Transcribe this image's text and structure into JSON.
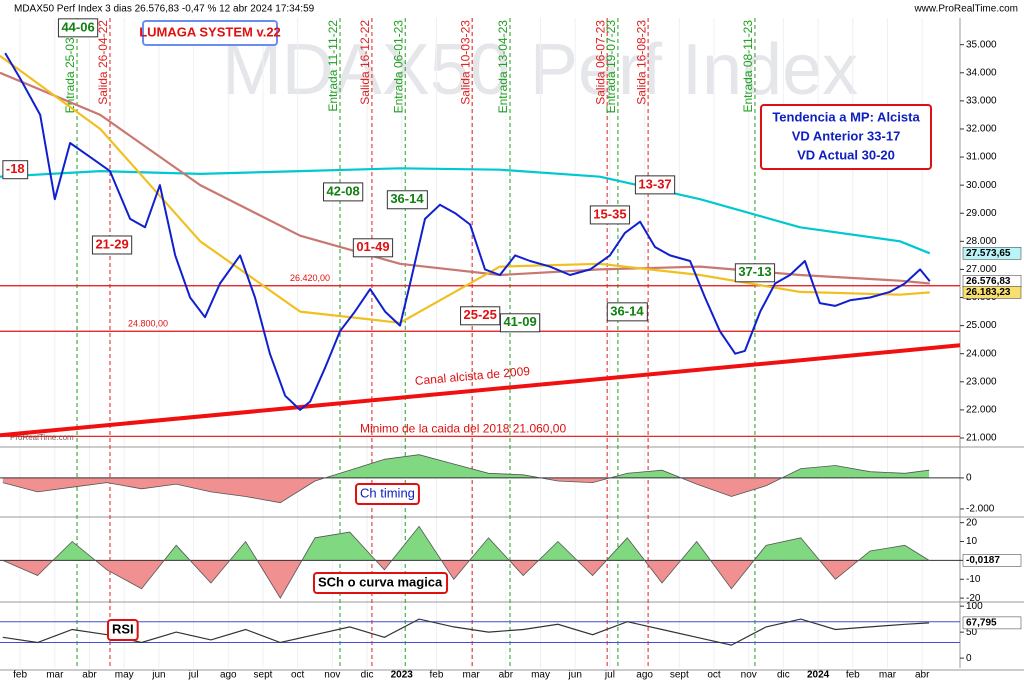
{
  "header": {
    "title": "MDAX50 Perf Index 3 dias 26.576,83 -0,47 % 12 abr 2024 17:34:59",
    "site": "www.ProRealTime.com"
  },
  "chart_data": [
    {
      "type": "line",
      "title": "MDAX50 Perf Index",
      "system_label": "LUMAGA SYSTEM v.22",
      "source": "ProRealTime.com",
      "trend_box": [
        "Tendencia a MP: Alcista",
        "VD Anterior 33-17",
        "VD Actual 30-20"
      ],
      "xlim": [
        0.42,
        28.09
      ],
      "xticks": [
        {
          "value": 1,
          "label": "feb"
        },
        {
          "value": 2,
          "label": "mar"
        },
        {
          "value": 3,
          "label": "abr"
        },
        {
          "value": 4,
          "label": "may"
        },
        {
          "value": 5,
          "label": "jun"
        },
        {
          "value": 6,
          "label": "jul"
        },
        {
          "value": 7,
          "label": "ago"
        },
        {
          "value": 8,
          "label": "sept"
        },
        {
          "value": 9,
          "label": "oct"
        },
        {
          "value": 10,
          "label": "nov"
        },
        {
          "value": 11,
          "label": "dic"
        },
        {
          "value": 12,
          "label": "2023"
        },
        {
          "value": 13,
          "label": "feb"
        },
        {
          "value": 14,
          "label": "mar"
        },
        {
          "value": 15,
          "label": "abr"
        },
        {
          "value": 16,
          "label": "may"
        },
        {
          "value": 17,
          "label": "jun"
        },
        {
          "value": 18,
          "label": "jul"
        },
        {
          "value": 19,
          "label": "ago"
        },
        {
          "value": 20,
          "label": "sept"
        },
        {
          "value": 21,
          "label": "oct"
        },
        {
          "value": 22,
          "label": "nov"
        },
        {
          "value": 23,
          "label": "dic"
        },
        {
          "value": 24,
          "label": "2024"
        },
        {
          "value": 25,
          "label": "feb"
        },
        {
          "value": 26,
          "label": "mar"
        },
        {
          "value": 27,
          "label": "abr"
        }
      ],
      "ylim": [
        20750,
        35950
      ],
      "yticks": [
        {
          "value": 35000,
          "label": "35.000"
        },
        {
          "value": 34000,
          "label": "34.000"
        },
        {
          "value": 33000,
          "label": "33.000"
        },
        {
          "value": 32000,
          "label": "32.000"
        },
        {
          "value": 31000,
          "label": "31.000"
        },
        {
          "value": 30000,
          "label": "30.000"
        },
        {
          "value": 29000,
          "label": "29.000"
        },
        {
          "value": 28000,
          "label": "28.000"
        },
        {
          "value": 27000,
          "label": "27.000"
        },
        {
          "value": 26000,
          "label": "26.000"
        },
        {
          "value": 25000,
          "label": "25.000"
        },
        {
          "value": 24000,
          "label": "24.000"
        },
        {
          "value": 23000,
          "label": "23.000"
        },
        {
          "value": 22000,
          "label": "22.000"
        },
        {
          "value": 21000,
          "label": "21.000"
        }
      ],
      "series": [
        {
          "color": "#00c8d0",
          "x": [
            0.42,
            3.31,
            6.19,
            9.07,
            11.95,
            14.83,
            17.71,
            20.6,
            23.48,
            26.36,
            27.22
          ],
          "values": [
            30300,
            30500,
            30400,
            30500,
            30600,
            30550,
            30300,
            29500,
            28500,
            28000,
            27573.65
          ]
        },
        {
          "color": "#c87870",
          "x": [
            0.42,
            3.31,
            6.19,
            9.07,
            11.95,
            14.83,
            17.71,
            20.6,
            23.48,
            26.36,
            27.22
          ],
          "values": [
            34000,
            32500,
            30000,
            28200,
            27200,
            26800,
            27000,
            27100,
            26800,
            26600,
            26500
          ]
        },
        {
          "color": "#f0c020",
          "x": [
            0.42,
            3.31,
            6.19,
            9.07,
            11.95,
            14.83,
            17.71,
            20.6,
            23.48,
            26.36,
            27.22
          ],
          "values": [
            34600,
            32000,
            28000,
            25500,
            25100,
            27100,
            27200,
            26800,
            26200,
            26100,
            26183.23
          ]
        },
        {
          "color": "#1020d0",
          "x": [
            0.57,
            1.0,
            1.58,
            2.0,
            2.44,
            3.02,
            3.59,
            4.17,
            4.6,
            5.03,
            5.47,
            5.9,
            6.33,
            6.76,
            7.34,
            7.77,
            8.2,
            8.64,
            9.07,
            9.36,
            9.79,
            10.22,
            10.65,
            11.09,
            11.52,
            11.95,
            12.24,
            12.67,
            13.1,
            13.54,
            13.97,
            14.4,
            14.83,
            15.27,
            15.7,
            16.27,
            16.85,
            17.43,
            18.0,
            18.43,
            18.87,
            19.3,
            19.73,
            20.31,
            20.74,
            21.17,
            21.61,
            21.89,
            22.33,
            22.76,
            23.19,
            23.62,
            24.05,
            24.49,
            24.92,
            25.5,
            26.07,
            26.5,
            26.94,
            27.22
          ],
          "values": [
            34700,
            33800,
            32500,
            29500,
            31500,
            31000,
            30500,
            28800,
            28500,
            30000,
            27500,
            26000,
            25300,
            26500,
            27500,
            26000,
            24000,
            22500,
            22000,
            22300,
            23500,
            24800,
            25500,
            26300,
            25500,
            25000,
            26500,
            28800,
            29300,
            29000,
            28600,
            27000,
            26800,
            27500,
            27300,
            27100,
            26800,
            27000,
            27500,
            28300,
            28700,
            27800,
            27500,
            27300,
            26000,
            24800,
            24000,
            24100,
            25500,
            26500,
            26800,
            27300,
            25800,
            25700,
            25900,
            26000,
            26200,
            26500,
            27000,
            26576.83
          ]
        }
      ],
      "levels": [
        {
          "value": 26420,
          "label": "26.420,00"
        },
        {
          "value": 24800,
          "label": "24.800,00"
        },
        {
          "value": 21060,
          "label": "Minimo de la caida del 2018  21.060,00"
        }
      ],
      "trendline": {
        "x": [
          0.42,
          28.09
        ],
        "values": [
          21100,
          24300
        ],
        "label": "Canal alcista de 2009"
      },
      "signals": [
        {
          "label": "Entrada 25-03-22",
          "x": 2.64,
          "color": "#20a020"
        },
        {
          "label": "Salida 26-04-22",
          "x": 3.59,
          "color": "#e02020"
        },
        {
          "label": "Entrada 11-11-22",
          "x": 10.22,
          "color": "#20a020"
        },
        {
          "label": "Salida 16-12-22",
          "x": 11.14,
          "color": "#e02020"
        },
        {
          "label": "Entrada 06-01-23",
          "x": 12.1,
          "color": "#20a020"
        },
        {
          "label": "Salida 10-03-23",
          "x": 14.03,
          "color": "#e02020"
        },
        {
          "label": "Entrada 13-04-23",
          "x": 15.12,
          "color": "#20a020"
        },
        {
          "label": "Salida 06-07-23",
          "x": 17.92,
          "color": "#e02020"
        },
        {
          "label": "Entrada 19-07-23",
          "x": 18.23,
          "color": "#20a020"
        },
        {
          "label": "Salida 16-08-23",
          "x": 19.1,
          "color": "#e02020"
        },
        {
          "label": "Entrada 08-11-23",
          "x": 22.18,
          "color": "#20a020"
        }
      ],
      "annotations": [
        {
          "text": "44-06",
          "x": 2.67,
          "y": 35600,
          "color": "#108010"
        },
        {
          "text": "-18",
          "x": 0.86,
          "y": 30550,
          "color": "#e01010"
        },
        {
          "text": "21-29",
          "x": 3.65,
          "y": 27870,
          "color": "#e01010"
        },
        {
          "text": "42-08",
          "x": 10.31,
          "y": 29760,
          "color": "#108010"
        },
        {
          "text": "36-14",
          "x": 12.15,
          "y": 29480,
          "color": "#108010"
        },
        {
          "text": "01-49",
          "x": 11.17,
          "y": 27770,
          "color": "#e01010"
        },
        {
          "text": "25-25",
          "x": 14.26,
          "y": 25350,
          "color": "#e01010"
        },
        {
          "text": "41-09",
          "x": 15.41,
          "y": 25100,
          "color": "#108010"
        },
        {
          "text": "15-35",
          "x": 18.0,
          "y": 28940,
          "color": "#e01010"
        },
        {
          "text": "13-37",
          "x": 19.3,
          "y": 30010,
          "color": "#e01010"
        },
        {
          "text": "36-14",
          "x": 18.49,
          "y": 25490,
          "color": "#108010"
        },
        {
          "text": "37-13",
          "x": 22.18,
          "y": 26880,
          "color": "#108010"
        }
      ],
      "price_tags": [
        {
          "value": 27573.65,
          "label": "27.573,65",
          "color": "#b8f4f8"
        },
        {
          "value": 26576.83,
          "label": "26.576,83",
          "color": "#ffffff"
        },
        {
          "value": 26183.23,
          "label": "26.183,23",
          "color": "#f8e070"
        }
      ]
    },
    {
      "type": "area",
      "title": "Ch timing",
      "ylim": [
        -2390,
        1800
      ],
      "yticks": [
        0,
        {
          "value": -2000,
          "label": "-2.000"
        }
      ],
      "x": [
        0.5,
        1.5,
        2.5,
        3.5,
        4.5,
        5.5,
        6.5,
        7.5,
        8.5,
        9.5,
        10.5,
        11.5,
        12.5,
        13.5,
        14.5,
        15.5,
        16.5,
        17.5,
        18.5,
        19.5,
        20.5,
        21.5,
        22.5,
        23.5,
        24.5,
        25.5,
        26.5,
        27.2
      ],
      "values": [
        -300,
        -900,
        -600,
        -300,
        -700,
        -400,
        -900,
        -1200,
        -1600,
        -200,
        500,
        1200,
        1500,
        900,
        300,
        200,
        -200,
        -300,
        300,
        500,
        -400,
        -1200,
        -500,
        600,
        800,
        400,
        300,
        500
      ]
    },
    {
      "type": "area",
      "title": "SCh o curva magica",
      "ylim": [
        -21,
        23
      ],
      "yticks": [
        20,
        10,
        0,
        -10,
        -20
      ],
      "x": [
        0.5,
        1.5,
        2.5,
        3.5,
        4.5,
        5.5,
        6.5,
        7.5,
        8.5,
        9.5,
        10.5,
        11.5,
        12.5,
        13.5,
        14.5,
        15.5,
        16.5,
        17.5,
        18.5,
        19.5,
        20.5,
        21.5,
        22.5,
        23.5,
        24.5,
        25.5,
        26.5,
        27.2
      ],
      "values": [
        0,
        -8,
        10,
        -5,
        -15,
        8,
        -12,
        10,
        -20,
        12,
        15,
        -5,
        18,
        -10,
        12,
        -8,
        10,
        -8,
        12,
        -12,
        10,
        -15,
        8,
        12,
        -10,
        5,
        8,
        -0.0187
      ],
      "price_tags": [
        {
          "value": -0.0187,
          "label": "-0,0187",
          "color": "#ffffff"
        }
      ]
    },
    {
      "type": "line",
      "title": "RSI",
      "ylim": [
        -19,
        108
      ],
      "yticks": [
        100,
        50,
        0
      ],
      "levels": [
        70,
        30
      ],
      "x": [
        0.5,
        1.5,
        2.5,
        3.5,
        4.5,
        5.5,
        6.5,
        7.5,
        8.5,
        9.5,
        10.5,
        11.5,
        12.5,
        13.5,
        14.5,
        15.5,
        16.5,
        17.5,
        18.5,
        19.5,
        20.5,
        21.5,
        22.5,
        23.5,
        24.5,
        25.5,
        26.5,
        27.2
      ],
      "values": [
        40,
        30,
        55,
        45,
        30,
        50,
        35,
        55,
        30,
        45,
        60,
        40,
        75,
        60,
        50,
        55,
        65,
        45,
        70,
        55,
        40,
        25,
        60,
        75,
        55,
        60,
        65,
        67.795
      ],
      "price_tags": [
        {
          "value": 67.795,
          "label": "67,795",
          "color": "#ffffff"
        }
      ]
    }
  ]
}
